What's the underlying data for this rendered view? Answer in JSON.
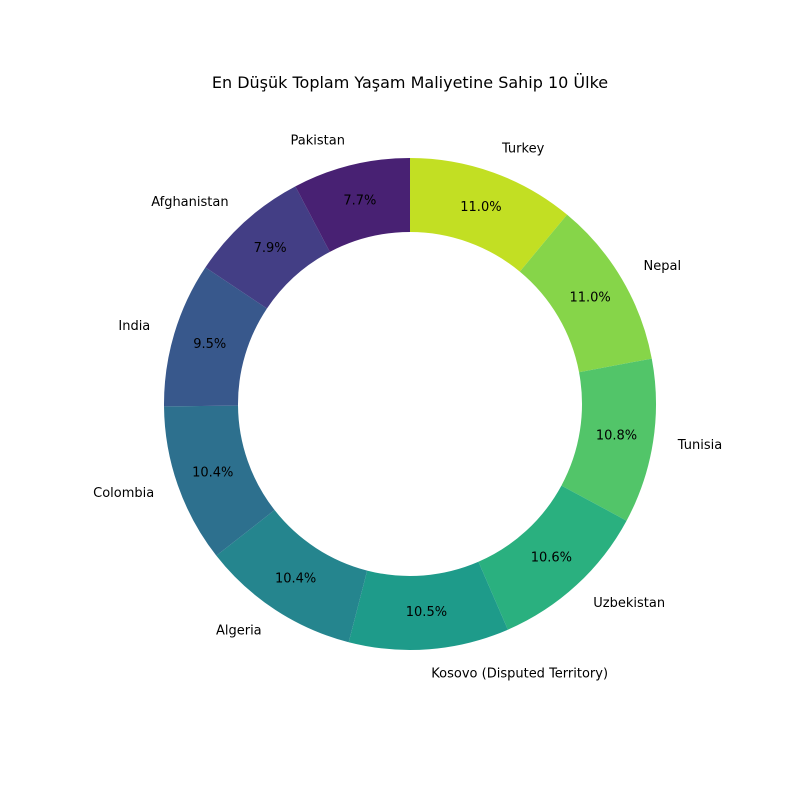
{
  "chart_data": {
    "type": "pie",
    "variant": "donut",
    "title": "En Düşük Toplam Yaşam Maliyetine Sahip 10 Ülke",
    "categories": [
      "Turkey",
      "Nepal",
      "Tunisia",
      "Uzbekistan",
      "Kosovo (Disputed Territory)",
      "Algeria",
      "Colombia",
      "India",
      "Afghanistan",
      "Pakistan"
    ],
    "values": [
      11.0,
      11.0,
      10.8,
      10.6,
      10.5,
      10.4,
      10.4,
      9.5,
      7.9,
      7.7
    ],
    "value_labels": [
      "11.0%",
      "11.0%",
      "10.8%",
      "10.6%",
      "10.5%",
      "10.4%",
      "10.4%",
      "9.5%",
      "7.9%",
      "7.7%"
    ],
    "colors": [
      "#c2df23",
      "#86d549",
      "#52c569",
      "#2ab07f",
      "#1e9b8a",
      "#25858e",
      "#2d708e",
      "#38588c",
      "#433e85",
      "#482173"
    ],
    "start_angle": "12 o'clock",
    "direction": "clockwise",
    "legend": "none"
  }
}
